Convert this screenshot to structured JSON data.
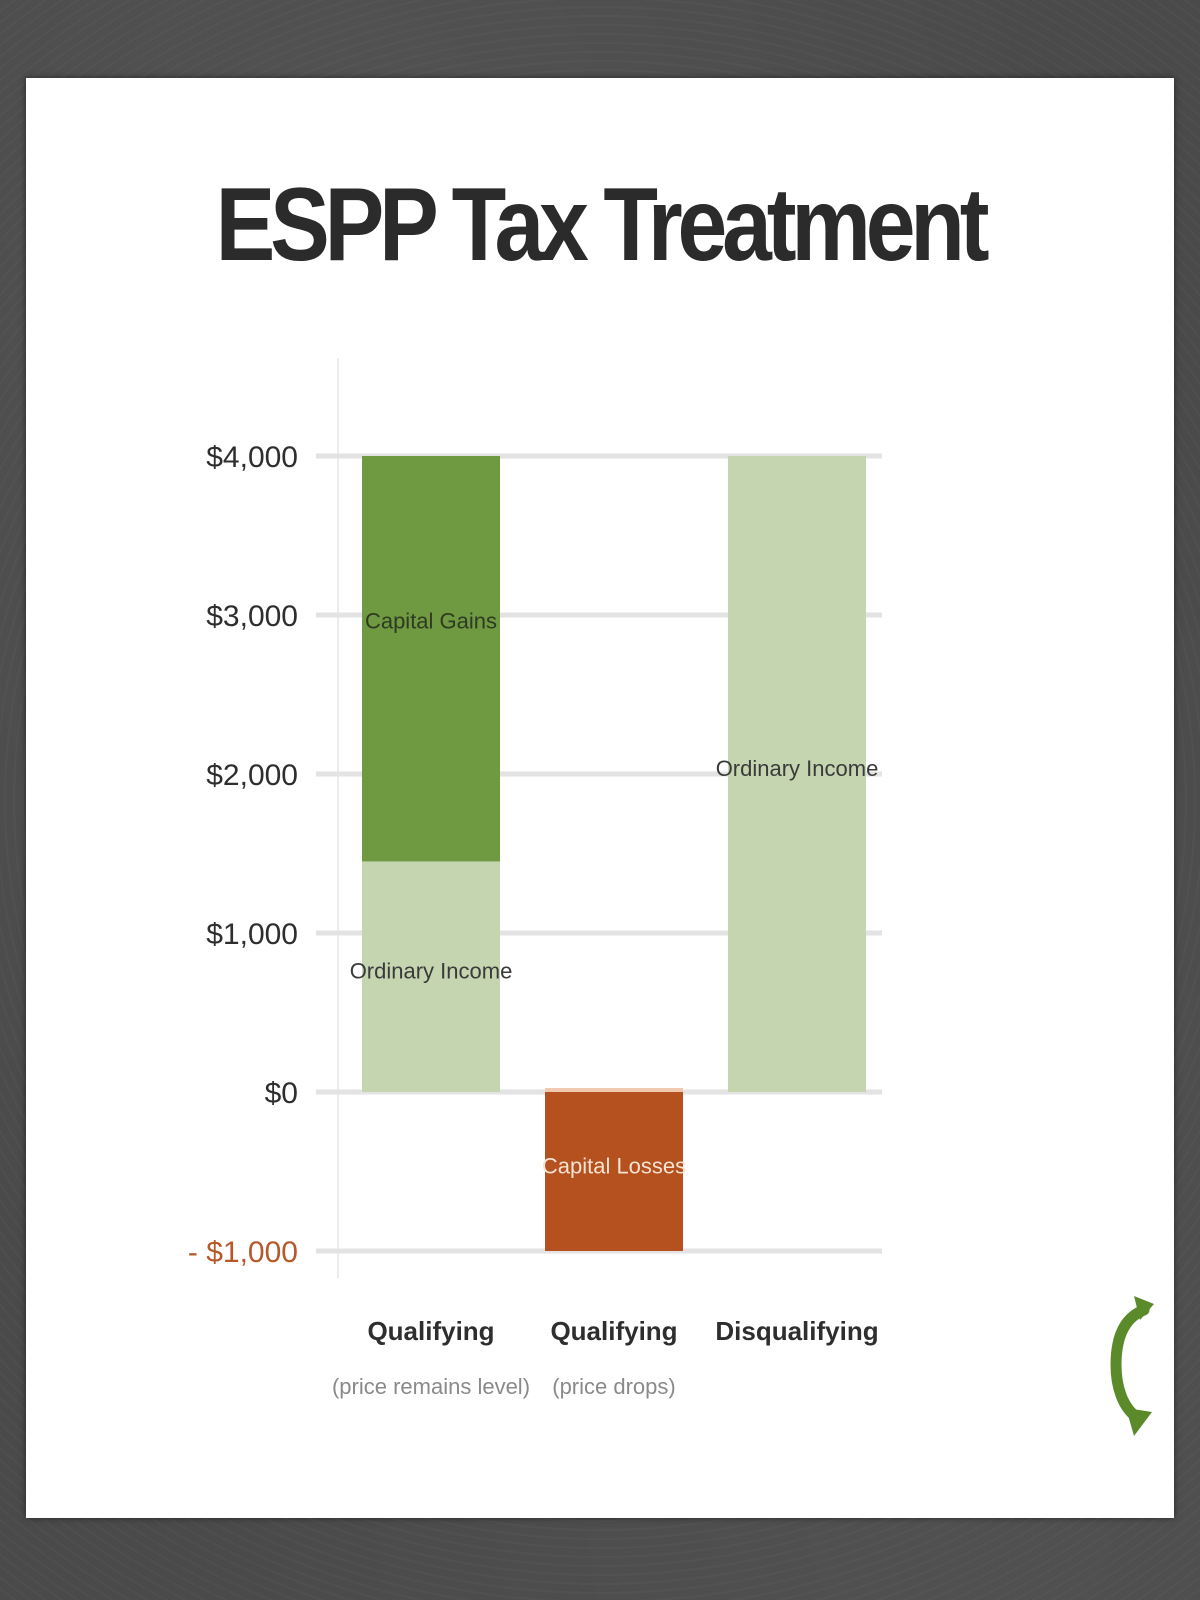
{
  "chart_data": {
    "type": "bar",
    "stacked": true,
    "title": "ESPP Tax Treatment",
    "xlabel": "",
    "ylabel": "",
    "ylim": [
      -1000,
      4000
    ],
    "yticks": [
      4000,
      3000,
      2000,
      1000,
      0,
      -1000
    ],
    "ytick_labels": [
      "$4,000",
      "$3,000",
      "$2,000",
      "$1,000",
      "$0",
      "- $1,000"
    ],
    "grid": true,
    "legend": "none",
    "categories": [
      {
        "label": "Qualifying",
        "sublabel": "(price remains level)"
      },
      {
        "label": "Qualifying",
        "sublabel": "(price drops)"
      },
      {
        "label": "Disqualifying",
        "sublabel": ""
      }
    ],
    "bars": [
      {
        "segments": [
          {
            "label": "Ordinary Income",
            "from": 0,
            "to": 1450,
            "color": "#c5d5b0",
            "text_color": "#3a3a3a"
          },
          {
            "label": "Capital Gains",
            "from": 1450,
            "to": 4000,
            "color": "#6f9a42",
            "text_color": "#2f3a22"
          }
        ]
      },
      {
        "segments": [
          {
            "label": "Capital Losses",
            "from": -1000,
            "to": 0,
            "color": "#b5501f",
            "text_color": "#f6e3d2"
          }
        ]
      },
      {
        "segments": [
          {
            "label": "Ordinary Income",
            "from": 0,
            "to": 4000,
            "color": "#c5d5b0",
            "text_color": "#3a3a3a"
          }
        ]
      }
    ]
  },
  "logo": {
    "icon": "refresh-arrow-icon",
    "color": "#5a8a2a"
  }
}
